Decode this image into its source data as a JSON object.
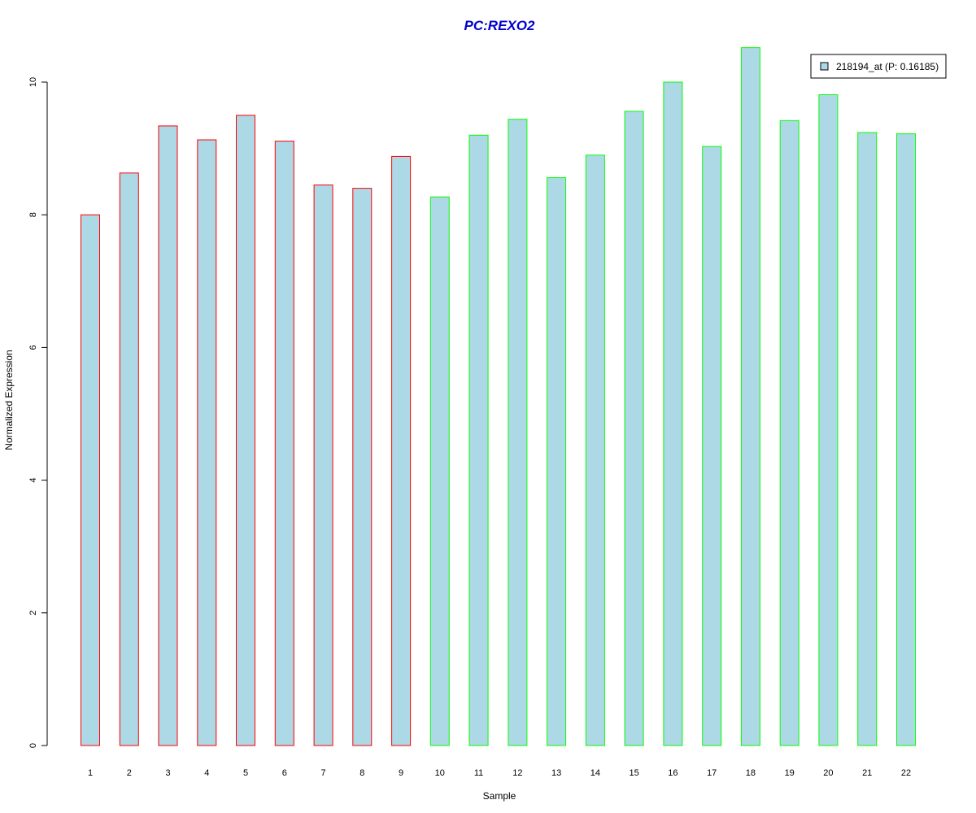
{
  "chart_data": {
    "type": "bar",
    "title": "PC:REXO2",
    "xlabel": "Sample",
    "ylabel": "Normalized Expression",
    "categories": [
      "1",
      "2",
      "3",
      "4",
      "5",
      "6",
      "7",
      "8",
      "9",
      "10",
      "11",
      "12",
      "13",
      "14",
      "15",
      "16",
      "17",
      "18",
      "19",
      "20",
      "21",
      "22"
    ],
    "series": [
      {
        "name": "218194_at (P: 0.16185)",
        "values": [
          8.0,
          8.63,
          9.34,
          9.13,
          9.5,
          9.11,
          8.45,
          8.4,
          8.88,
          8.27,
          9.2,
          9.44,
          8.56,
          8.9,
          9.56,
          10.0,
          9.03,
          10.52,
          9.42,
          9.81,
          9.24,
          9.22
        ]
      }
    ],
    "groups": [
      {
        "samples": [
          "1",
          "2",
          "3",
          "4",
          "5",
          "6",
          "7",
          "8",
          "9"
        ],
        "border_color": "#ff0000"
      },
      {
        "samples": [
          "10",
          "11",
          "12",
          "13",
          "14",
          "15",
          "16",
          "17",
          "18",
          "19",
          "20",
          "21",
          "22"
        ],
        "border_color": "#00ff00"
      }
    ],
    "yticks": [
      0,
      2,
      4,
      6,
      8,
      10
    ],
    "ylim": [
      0,
      10.52
    ],
    "grid": false,
    "legend_position": "top-right",
    "colors": {
      "bar_fill": "#add8e6",
      "title": "#0000cd"
    }
  }
}
